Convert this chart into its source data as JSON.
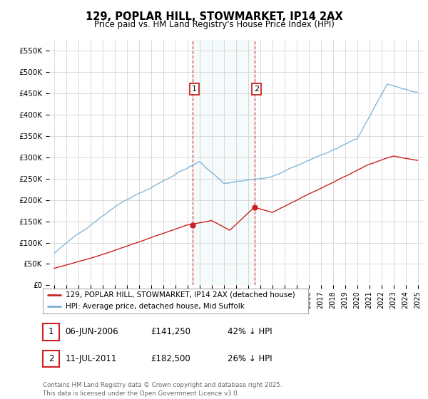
{
  "title": "129, POPLAR HILL, STOWMARKET, IP14 2AX",
  "subtitle": "Price paid vs. HM Land Registry's House Price Index (HPI)",
  "ylabel_ticks": [
    "£0",
    "£50K",
    "£100K",
    "£150K",
    "£200K",
    "£250K",
    "£300K",
    "£350K",
    "£400K",
    "£450K",
    "£500K",
    "£550K"
  ],
  "ytick_vals": [
    0,
    50000,
    100000,
    150000,
    200000,
    250000,
    300000,
    350000,
    400000,
    450000,
    500000,
    550000
  ],
  "ylim": [
    0,
    575000
  ],
  "xlim_start": 1994.6,
  "xlim_end": 2025.5,
  "xtick_years": [
    1995,
    1996,
    1997,
    1998,
    1999,
    2000,
    2001,
    2002,
    2003,
    2004,
    2005,
    2006,
    2007,
    2008,
    2009,
    2010,
    2011,
    2012,
    2013,
    2014,
    2015,
    2016,
    2017,
    2018,
    2019,
    2020,
    2021,
    2022,
    2023,
    2024,
    2025
  ],
  "hpi_color": "#7ab0d4",
  "price_color": "#cc2222",
  "marker1_x": 2006.43,
  "marker1_y": 141250,
  "marker2_x": 2011.53,
  "marker2_y": 182500,
  "vline1_x": 2006.43,
  "vline2_x": 2011.53,
  "shade_x1": 2006.43,
  "shade_x2": 2011.53,
  "legend_label_price": "129, POPLAR HILL, STOWMARKET, IP14 2AX (detached house)",
  "legend_label_hpi": "HPI: Average price, detached house, Mid Suffolk",
  "annotation1_label": "1",
  "annotation1_date": "06-JUN-2006",
  "annotation1_price": "£141,250",
  "annotation1_hpi": "42% ↓ HPI",
  "annotation2_label": "2",
  "annotation2_date": "11-JUL-2011",
  "annotation2_price": "£182,500",
  "annotation2_hpi": "26% ↓ HPI",
  "footer": "Contains HM Land Registry data © Crown copyright and database right 2025.\nThis data is licensed under the Open Government Licence v3.0.",
  "background_color": "#ffffff",
  "grid_color": "#cccccc"
}
